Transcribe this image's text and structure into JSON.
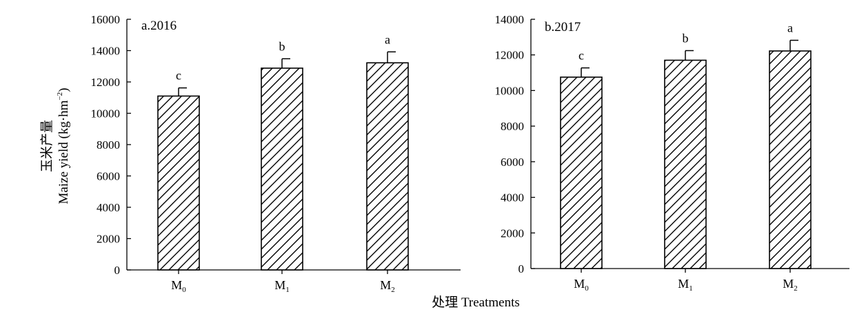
{
  "chart_data": {
    "type": "bar",
    "ylabel": {
      "line1": "玉米产量",
      "line2_main": "Maize yield (kg·hm",
      "line2_sup": "−2",
      "line2_end": ")"
    },
    "xlabel": "处理 Treatments",
    "colors": {
      "bar_fill": "#ffffff",
      "stroke": "#000000"
    },
    "panels": [
      {
        "title": "a.2016",
        "ylim": [
          0,
          16000
        ],
        "yticks": [
          0,
          2000,
          4000,
          6000,
          8000,
          10000,
          12000,
          14000,
          16000
        ],
        "categories": [
          {
            "main": "M",
            "sub": "0"
          },
          {
            "main": "M",
            "sub": "1"
          },
          {
            "main": "M",
            "sub": "2"
          }
        ],
        "values": [
          11100,
          12880,
          13220
        ],
        "errors": [
          520,
          600,
          700
        ],
        "significance": [
          "c",
          "b",
          "a"
        ]
      },
      {
        "title": "b.2017",
        "ylim": [
          0,
          14000
        ],
        "yticks": [
          0,
          2000,
          4000,
          6000,
          8000,
          10000,
          12000,
          14000
        ],
        "categories": [
          {
            "main": "M",
            "sub": "0"
          },
          {
            "main": "M",
            "sub": "1"
          },
          {
            "main": "M",
            "sub": "2"
          }
        ],
        "values": [
          10750,
          11700,
          12220
        ],
        "errors": [
          520,
          540,
          600
        ],
        "significance": [
          "c",
          "b",
          "a"
        ]
      }
    ]
  }
}
